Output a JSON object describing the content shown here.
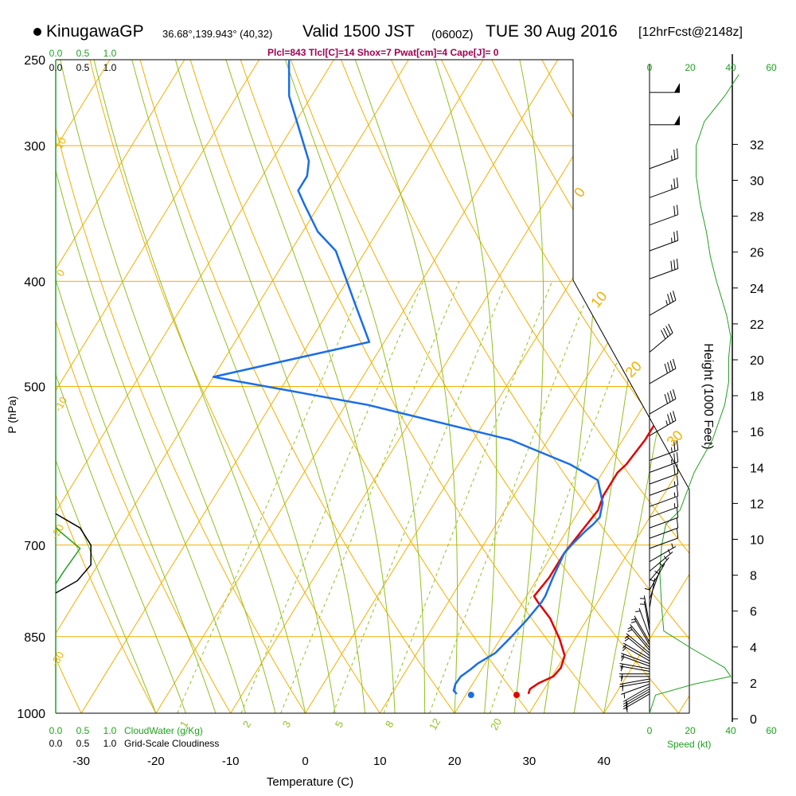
{
  "header": {
    "station": "KinugawaGP",
    "coords": "36.68°,139.943° (40,32)",
    "valid_main": "Valid 1500 JST",
    "valid_utc": "(0600Z)",
    "valid_date": "TUE 30 Aug 2016",
    "forecast": "[12hrFcst@2148z]",
    "params": "Plcl=843 Tlcl[C]=14 Shox=7 Pwat[cm]=4 Cape[J]= 0"
  },
  "colors": {
    "temperature": "#e00000",
    "dewpoint": "#1a6ee6",
    "isotherm": "#f0b000",
    "dry_adiabat": "#f0b000",
    "moist_adiabat": "#90c020",
    "mixing_ratio": "#90c020",
    "cloudwater": "#22a022",
    "speed": "#22a022",
    "cloudiness": "#000000",
    "params_text": "#a00050"
  },
  "chart_data": {
    "type": "line",
    "title": "",
    "xlabel": "Temperature (C)",
    "ylabel": "P (hPa)",
    "right_axis_label": "Height (1000 Feet)",
    "xlim": [
      -35,
      45
    ],
    "ylim": [
      1000,
      250
    ],
    "x_ticks": [
      "-30",
      "-20",
      "-10",
      "0",
      "10",
      "20",
      "30",
      "40"
    ],
    "pressure_ticks": [
      "250",
      "300",
      "400",
      "500",
      "700",
      "850",
      "1000"
    ],
    "height_ticks": [
      "0",
      "2",
      "4",
      "6",
      "8",
      "10",
      "12",
      "14",
      "16",
      "18",
      "20",
      "22",
      "24",
      "26",
      "28",
      "30",
      "32"
    ],
    "series": [
      {
        "name": "temperature",
        "points": [
          [
            28.3,
            960
          ],
          [
            28.1,
            950
          ],
          [
            28.8,
            938
          ],
          [
            30.2,
            925
          ],
          [
            30.5,
            908
          ],
          [
            30.0,
            885
          ],
          [
            28.0,
            855
          ],
          [
            25.0,
            818
          ],
          [
            22.0,
            790
          ],
          [
            21.0,
            780
          ],
          [
            21.5,
            750
          ],
          [
            21.5,
            712
          ],
          [
            22.0,
            680
          ],
          [
            22.5,
            650
          ],
          [
            22.0,
            630
          ],
          [
            22.0,
            620
          ],
          [
            22.0,
            600
          ],
          [
            22.5,
            590
          ],
          [
            23.0,
            560
          ],
          [
            23.0,
            545
          ],
          [
            23.0,
            530
          ],
          [
            22.5,
            520
          ],
          [
            21.0,
            500
          ],
          [
            17.0,
            450
          ],
          [
            12.5,
            415
          ],
          [
            10.0,
            400
          ],
          [
            5.0,
            350
          ],
          [
            0.0,
            320
          ],
          [
            -5.0,
            290
          ],
          [
            -8.0,
            260
          ],
          [
            -10.0,
            250
          ]
        ],
        "surface_point": [
          26.8,
          962
        ]
      },
      {
        "name": "dewpoint",
        "points": [
          [
            18.7,
            960
          ],
          [
            18.0,
            953
          ],
          [
            17.7,
            940
          ],
          [
            17.8,
            925
          ],
          [
            18.5,
            912
          ],
          [
            19.0,
            900
          ],
          [
            20.5,
            880
          ],
          [
            21.3,
            850
          ],
          [
            22.0,
            820
          ],
          [
            22.5,
            790
          ],
          [
            22.5,
            780
          ],
          [
            22.0,
            750
          ],
          [
            21.5,
            712
          ],
          [
            21.8,
            700
          ],
          [
            22.5,
            680
          ],
          [
            23.0,
            670
          ],
          [
            23.3,
            660
          ],
          [
            22.5,
            640
          ],
          [
            20.0,
            610
          ],
          [
            15.0,
            590
          ],
          [
            5.0,
            560
          ],
          [
            -17.0,
            520
          ],
          [
            -40.0,
            490
          ],
          [
            -22.0,
            455
          ],
          [
            -27.0,
            420
          ],
          [
            -30.0,
            400
          ],
          [
            -34.0,
            375
          ],
          [
            -38.0,
            360
          ],
          [
            -42.0,
            340
          ],
          [
            -44.0,
            330
          ],
          [
            -44.0,
            320
          ],
          [
            -45.0,
            310
          ],
          [
            -53.0,
            270
          ],
          [
            -56.0,
            250
          ]
        ],
        "surface_point": [
          20.7,
          962
        ]
      }
    ],
    "isotherm_labels": [
      "10",
      "0",
      "-10",
      "-20",
      "-30",
      "0",
      "10",
      "20",
      "30"
    ],
    "mixing_ratio_labels": [
      "1",
      "2",
      "3",
      "5",
      "8",
      "12",
      "20"
    ],
    "cloudwater_axis": {
      "title": "CloudWater (g/Kg)",
      "ticks": [
        "0.0",
        "0.5",
        "1.0"
      ]
    },
    "cloudiness_axis": {
      "title": "Grid-Scale Cloudiness",
      "ticks": [
        "0.0",
        "0.5",
        "1.0"
      ]
    },
    "speed_axis": {
      "title": "Speed (kt)",
      "ticks": [
        "0",
        "20",
        "40",
        "60"
      ]
    },
    "cloudiness_profile": [
      [
        0.0,
        655
      ],
      [
        0.45,
        675
      ],
      [
        0.65,
        700
      ],
      [
        0.65,
        730
      ],
      [
        0.4,
        755
      ],
      [
        0.0,
        775
      ]
    ],
    "cloudwater_profile": [
      [
        0.0,
        675
      ],
      [
        0.45,
        705
      ],
      [
        0.15,
        740
      ],
      [
        0.0,
        760
      ]
    ],
    "wind_speed_profile": [
      [
        0,
        1000
      ],
      [
        3,
        962
      ],
      [
        22,
        940
      ],
      [
        40,
        925
      ],
      [
        37,
        908
      ],
      [
        20,
        870
      ],
      [
        7,
        840
      ],
      [
        6,
        800
      ],
      [
        5,
        740
      ],
      [
        6,
        700
      ],
      [
        8,
        670
      ],
      [
        15,
        650
      ],
      [
        22,
        600
      ],
      [
        31,
        560
      ],
      [
        37,
        520
      ],
      [
        39,
        495
      ],
      [
        39,
        470
      ],
      [
        40,
        450
      ],
      [
        38,
        430
      ],
      [
        33,
        400
      ],
      [
        30,
        380
      ],
      [
        28,
        360
      ],
      [
        25,
        340
      ],
      [
        23,
        320
      ],
      [
        23,
        300
      ],
      [
        27,
        285
      ],
      [
        37,
        270
      ],
      [
        44,
        258
      ]
    ],
    "wind_barbs": [
      {
        "p": 960,
        "speed": 5,
        "dir": 120
      },
      {
        "p": 955,
        "speed": 5,
        "dir": 120
      },
      {
        "p": 950,
        "speed": 5,
        "dir": 120
      },
      {
        "p": 945,
        "speed": 5,
        "dir": 120
      },
      {
        "p": 940,
        "speed": 5,
        "dir": 110
      },
      {
        "p": 935,
        "speed": 5,
        "dir": 100
      },
      {
        "p": 930,
        "speed": 5,
        "dir": 100
      },
      {
        "p": 925,
        "speed": 5,
        "dir": 90
      },
      {
        "p": 920,
        "speed": 5,
        "dir": 90
      },
      {
        "p": 915,
        "speed": 5,
        "dir": 80
      },
      {
        "p": 910,
        "speed": 5,
        "dir": 80
      },
      {
        "p": 905,
        "speed": 5,
        "dir": 70
      },
      {
        "p": 900,
        "speed": 5,
        "dir": 70
      },
      {
        "p": 895,
        "speed": 5,
        "dir": 60
      },
      {
        "p": 890,
        "speed": 5,
        "dir": 60
      },
      {
        "p": 885,
        "speed": 5,
        "dir": 50
      },
      {
        "p": 880,
        "speed": 5,
        "dir": 50
      },
      {
        "p": 875,
        "speed": 5,
        "dir": 40
      },
      {
        "p": 870,
        "speed": 5,
        "dir": 40
      },
      {
        "p": 865,
        "speed": 5,
        "dir": 30
      },
      {
        "p": 860,
        "speed": 5,
        "dir": 30
      },
      {
        "p": 850,
        "speed": 5,
        "dir": 20
      },
      {
        "p": 840,
        "speed": 5,
        "dir": 10
      },
      {
        "p": 830,
        "speed": 5,
        "dir": 10
      },
      {
        "p": 815,
        "speed": 5,
        "dir": 0
      },
      {
        "p": 800,
        "speed": 5,
        "dir": 350
      },
      {
        "p": 785,
        "speed": 5,
        "dir": 340
      },
      {
        "p": 770,
        "speed": 5,
        "dir": 330
      },
      {
        "p": 755,
        "speed": 5,
        "dir": 320
      },
      {
        "p": 740,
        "speed": 5,
        "dir": 310
      },
      {
        "p": 725,
        "speed": 5,
        "dir": 300
      },
      {
        "p": 705,
        "speed": 10,
        "dir": 290
      },
      {
        "p": 690,
        "speed": 10,
        "dir": 290
      },
      {
        "p": 675,
        "speed": 10,
        "dir": 290
      },
      {
        "p": 660,
        "speed": 15,
        "dir": 290
      },
      {
        "p": 645,
        "speed": 15,
        "dir": 290
      },
      {
        "p": 630,
        "speed": 15,
        "dir": 290
      },
      {
        "p": 615,
        "speed": 20,
        "dir": 290
      },
      {
        "p": 600,
        "speed": 25,
        "dir": 290
      },
      {
        "p": 585,
        "speed": 25,
        "dir": 290
      },
      {
        "p": 555,
        "speed": 35,
        "dir": 300
      },
      {
        "p": 530,
        "speed": 40,
        "dir": 300
      },
      {
        "p": 497,
        "speed": 40,
        "dir": 300
      },
      {
        "p": 465,
        "speed": 40,
        "dir": 310
      },
      {
        "p": 430,
        "speed": 35,
        "dir": 300
      },
      {
        "p": 398,
        "speed": 30,
        "dir": 290
      },
      {
        "p": 375,
        "speed": 25,
        "dir": 290
      },
      {
        "p": 355,
        "speed": 20,
        "dir": 290
      },
      {
        "p": 335,
        "speed": 25,
        "dir": 290
      },
      {
        "p": 315,
        "speed": 25,
        "dir": 290
      },
      {
        "p": 287,
        "speed": 50,
        "dir": 270
      },
      {
        "p": 268,
        "speed": 50,
        "dir": 270
      }
    ]
  }
}
